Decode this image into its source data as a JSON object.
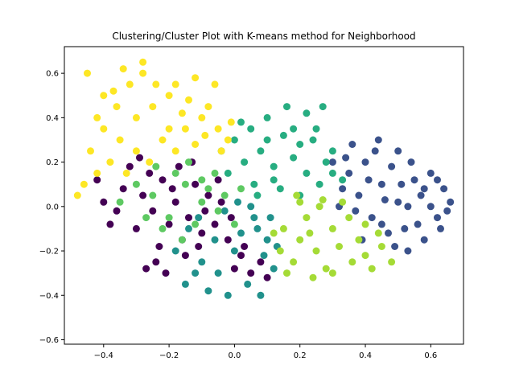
{
  "chart_data": {
    "type": "scatter",
    "title": "Clustering/Cluster Plot with K-means method for Neighborhood",
    "xlabel": "",
    "ylabel": "",
    "xlim": [
      -0.52,
      0.7
    ],
    "ylim": [
      -0.62,
      0.72
    ],
    "xticks": [
      -0.4,
      -0.2,
      0.0,
      0.2,
      0.4,
      0.6
    ],
    "yticks": [
      -0.6,
      -0.4,
      -0.2,
      0.0,
      0.2,
      0.4,
      0.6
    ],
    "xtick_labels": [
      "−0.4",
      "−0.2",
      "0.0",
      "0.2",
      "0.4",
      "0.6"
    ],
    "ytick_labels": [
      "−0.6",
      "−0.4",
      "−0.2",
      "0.0",
      "0.2",
      "0.4",
      "0.6"
    ],
    "grid": false,
    "legend": false,
    "series": [
      {
        "color": "#440154",
        "values": [
          [
            -0.28,
            0.05
          ],
          [
            -0.25,
            -0.02
          ],
          [
            -0.22,
            0.12
          ],
          [
            -0.2,
            -0.08
          ],
          [
            -0.18,
            0.02
          ],
          [
            -0.16,
            -0.15
          ],
          [
            -0.3,
            -0.1
          ],
          [
            -0.26,
            0.15
          ],
          [
            -0.23,
            -0.18
          ],
          [
            -0.19,
            0.08
          ],
          [
            -0.14,
            -0.05
          ],
          [
            -0.12,
            0.1
          ],
          [
            -0.1,
            -0.12
          ],
          [
            -0.08,
            0.05
          ],
          [
            -0.34,
            0.08
          ],
          [
            -0.36,
            -0.02
          ],
          [
            -0.32,
            0.18
          ],
          [
            -0.29,
            0.22
          ],
          [
            -0.24,
            -0.25
          ],
          [
            -0.21,
            -0.3
          ],
          [
            -0.27,
            -0.28
          ],
          [
            -0.15,
            -0.22
          ],
          [
            -0.11,
            -0.18
          ],
          [
            -0.06,
            -0.08
          ],
          [
            -0.04,
            0.02
          ],
          [
            -0.02,
            -0.15
          ],
          [
            0.02,
            -0.22
          ],
          [
            0.05,
            -0.3
          ],
          [
            0.08,
            -0.25
          ],
          [
            0.1,
            -0.32
          ],
          [
            -0.4,
            0.02
          ],
          [
            -0.38,
            -0.08
          ],
          [
            -0.42,
            0.12
          ],
          [
            -0.17,
            0.18
          ],
          [
            -0.13,
            0.2
          ],
          [
            -0.09,
            -0.02
          ],
          [
            0.0,
            -0.28
          ],
          [
            0.03,
            -0.18
          ],
          [
            -0.01,
            -0.05
          ],
          [
            -0.05,
            0.12
          ]
        ]
      },
      {
        "color": "#3b528b",
        "values": [
          [
            0.35,
            0.15
          ],
          [
            0.38,
            0.05
          ],
          [
            0.4,
            0.2
          ],
          [
            0.42,
            -0.05
          ],
          [
            0.45,
            0.1
          ],
          [
            0.48,
            0.18
          ],
          [
            0.5,
            0.02
          ],
          [
            0.52,
            -0.1
          ],
          [
            0.55,
            0.12
          ],
          [
            0.57,
            0.05
          ],
          [
            0.6,
            0.0
          ],
          [
            0.62,
            -0.05
          ],
          [
            0.64,
            0.08
          ],
          [
            0.66,
            0.02
          ],
          [
            0.58,
            -0.15
          ],
          [
            0.53,
            -0.2
          ],
          [
            0.47,
            -0.12
          ],
          [
            0.43,
            0.25
          ],
          [
            0.37,
            -0.02
          ],
          [
            0.33,
            0.08
          ],
          [
            0.3,
            0.2
          ],
          [
            0.32,
            0.0
          ],
          [
            0.36,
            0.28
          ],
          [
            0.44,
            0.3
          ],
          [
            0.5,
            0.25
          ],
          [
            0.54,
            0.2
          ],
          [
            0.6,
            0.15
          ],
          [
            0.62,
            0.12
          ],
          [
            0.65,
            -0.02
          ],
          [
            0.56,
            -0.08
          ],
          [
            0.49,
            -0.18
          ],
          [
            0.45,
            -0.08
          ],
          [
            0.41,
            0.12
          ],
          [
            0.39,
            -0.15
          ],
          [
            0.34,
            0.22
          ],
          [
            0.51,
            0.1
          ],
          [
            0.46,
            0.03
          ],
          [
            0.58,
            0.08
          ],
          [
            0.53,
            0.0
          ],
          [
            0.63,
            -0.1
          ]
        ]
      },
      {
        "color": "#21918c",
        "values": [
          [
            -0.1,
            -0.25
          ],
          [
            -0.05,
            -0.3
          ],
          [
            0.0,
            -0.2
          ],
          [
            0.04,
            -0.35
          ],
          [
            0.07,
            -0.1
          ],
          [
            0.1,
            -0.15
          ],
          [
            -0.08,
            -0.38
          ],
          [
            -0.12,
            -0.3
          ],
          [
            -0.02,
            -0.4
          ],
          [
            0.02,
            -0.12
          ],
          [
            0.06,
            -0.05
          ],
          [
            0.09,
            -0.22
          ],
          [
            -0.15,
            -0.35
          ],
          [
            -0.18,
            -0.2
          ],
          [
            0.12,
            -0.28
          ],
          [
            0.08,
            -0.4
          ],
          [
            -0.06,
            -0.15
          ],
          [
            -0.03,
            -0.02
          ],
          [
            0.01,
            0.02
          ],
          [
            0.05,
            0.0
          ],
          [
            -0.14,
            -0.1
          ],
          [
            -0.11,
            -0.05
          ],
          [
            0.11,
            -0.05
          ],
          [
            0.13,
            -0.18
          ]
        ]
      },
      {
        "color": "#27ad81",
        "values": [
          [
            0.0,
            0.3
          ],
          [
            0.05,
            0.35
          ],
          [
            0.1,
            0.4
          ],
          [
            0.15,
            0.32
          ],
          [
            0.2,
            0.28
          ],
          [
            0.25,
            0.35
          ],
          [
            0.28,
            0.2
          ],
          [
            0.22,
            0.15
          ],
          [
            0.18,
            0.22
          ],
          [
            0.12,
            0.18
          ],
          [
            0.08,
            0.25
          ],
          [
            0.03,
            0.2
          ],
          [
            -0.02,
            0.15
          ],
          [
            0.06,
            0.1
          ],
          [
            0.14,
            0.08
          ],
          [
            0.2,
            0.05
          ],
          [
            0.26,
            0.1
          ],
          [
            0.3,
            0.25
          ],
          [
            0.16,
            0.45
          ],
          [
            0.22,
            0.42
          ],
          [
            0.27,
            0.45
          ],
          [
            0.1,
            0.3
          ],
          [
            -0.04,
            0.25
          ],
          [
            0.02,
            0.38
          ],
          [
            0.24,
            0.3
          ],
          [
            0.18,
            0.35
          ],
          [
            0.12,
            0.12
          ],
          [
            0.07,
            0.05
          ],
          [
            0.3,
            0.15
          ],
          [
            0.33,
            0.12
          ]
        ]
      },
      {
        "color": "#5ec962",
        "values": [
          [
            -0.25,
            0.05
          ],
          [
            -0.2,
            -0.05
          ],
          [
            -0.15,
            0.1
          ],
          [
            -0.1,
            0.02
          ],
          [
            -0.05,
            -0.02
          ],
          [
            -0.22,
            -0.1
          ],
          [
            -0.18,
            0.15
          ],
          [
            -0.12,
            -0.08
          ],
          [
            -0.08,
            0.08
          ],
          [
            -0.3,
            0.1
          ],
          [
            -0.27,
            -0.05
          ],
          [
            -0.03,
            0.05
          ],
          [
            0.0,
            -0.08
          ],
          [
            -0.14,
            0.2
          ],
          [
            -0.06,
            0.15
          ],
          [
            -0.24,
            0.18
          ],
          [
            -0.16,
            -0.15
          ],
          [
            -0.1,
            0.12
          ],
          [
            0.02,
            0.08
          ],
          [
            -0.35,
            0.02
          ]
        ]
      },
      {
        "color": "#a5db36",
        "values": [
          [
            0.15,
            -0.1
          ],
          [
            0.2,
            -0.15
          ],
          [
            0.25,
            -0.2
          ],
          [
            0.3,
            -0.1
          ],
          [
            0.22,
            -0.05
          ],
          [
            0.18,
            -0.25
          ],
          [
            0.28,
            -0.28
          ],
          [
            0.32,
            -0.18
          ],
          [
            0.26,
            0.0
          ],
          [
            0.2,
            0.02
          ],
          [
            0.14,
            -0.2
          ],
          [
            0.35,
            -0.05
          ],
          [
            0.38,
            -0.15
          ],
          [
            0.4,
            -0.22
          ],
          [
            0.42,
            -0.28
          ],
          [
            0.45,
            -0.18
          ],
          [
            0.48,
            -0.25
          ],
          [
            0.3,
            -0.3
          ],
          [
            0.24,
            -0.32
          ],
          [
            0.16,
            -0.3
          ],
          [
            0.12,
            -0.12
          ],
          [
            0.36,
            -0.25
          ],
          [
            0.44,
            -0.12
          ],
          [
            0.23,
            -0.12
          ],
          [
            0.27,
            0.03
          ],
          [
            0.33,
            0.02
          ],
          [
            0.19,
            0.05
          ],
          [
            0.4,
            -0.08
          ]
        ]
      },
      {
        "color": "#fde725",
        "values": [
          [
            -0.3,
            0.4
          ],
          [
            -0.25,
            0.45
          ],
          [
            -0.2,
            0.5
          ],
          [
            -0.15,
            0.35
          ],
          [
            -0.1,
            0.4
          ],
          [
            -0.35,
            0.3
          ],
          [
            -0.4,
            0.5
          ],
          [
            -0.38,
            0.2
          ],
          [
            -0.32,
            0.55
          ],
          [
            -0.28,
            0.6
          ],
          [
            -0.22,
            0.3
          ],
          [
            -0.18,
            0.25
          ],
          [
            -0.12,
            0.28
          ],
          [
            -0.08,
            0.45
          ],
          [
            -0.05,
            0.35
          ],
          [
            -0.02,
            0.3
          ],
          [
            -0.42,
            0.4
          ],
          [
            -0.45,
            0.6
          ],
          [
            -0.44,
            0.25
          ],
          [
            -0.36,
            0.45
          ],
          [
            -0.3,
            0.25
          ],
          [
            -0.26,
            0.2
          ],
          [
            -0.2,
            0.35
          ],
          [
            -0.14,
            0.48
          ],
          [
            -0.06,
            0.55
          ],
          [
            -0.12,
            0.58
          ],
          [
            -0.34,
            0.62
          ],
          [
            -0.28,
            0.65
          ],
          [
            -0.4,
            0.35
          ],
          [
            -0.24,
            0.55
          ],
          [
            -0.16,
            0.42
          ],
          [
            -0.46,
            0.1
          ],
          [
            -0.48,
            0.05
          ],
          [
            -0.42,
            0.15
          ],
          [
            -0.33,
            0.15
          ],
          [
            -0.01,
            0.38
          ],
          [
            -0.04,
            0.25
          ],
          [
            -0.09,
            0.32
          ],
          [
            -0.18,
            0.55
          ],
          [
            -0.37,
            0.52
          ]
        ]
      }
    ]
  }
}
